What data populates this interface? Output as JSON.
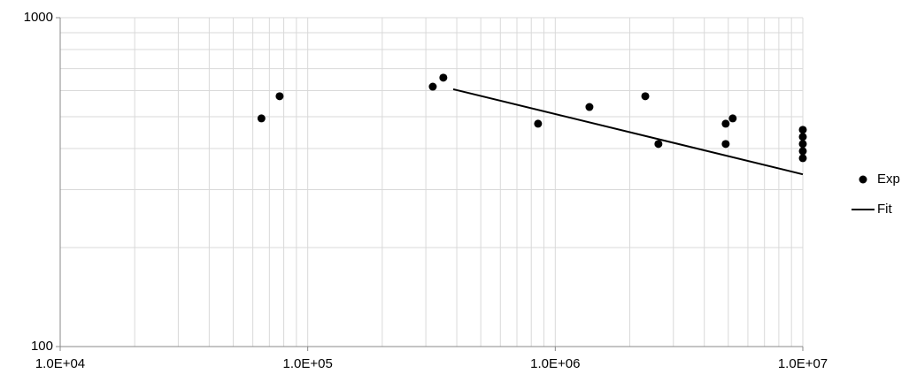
{
  "chart_data": {
    "type": "scatter",
    "xscale": "log",
    "yscale": "log",
    "xlim": [
      10000,
      10000000
    ],
    "ylim": [
      100,
      1000
    ],
    "xticks": [
      {
        "value": 10000,
        "label": "1.0E+04"
      },
      {
        "value": 100000,
        "label": "1.0E+05"
      },
      {
        "value": 1000000,
        "label": "1.0E+06"
      },
      {
        "value": 10000000,
        "label": "1.0E+07"
      }
    ],
    "yticks": [
      100,
      1000
    ],
    "xminorticks": [
      20000,
      30000,
      40000,
      50000,
      60000,
      70000,
      80000,
      90000,
      200000,
      300000,
      400000,
      500000,
      600000,
      700000,
      800000,
      900000,
      2000000,
      3000000,
      4000000,
      5000000,
      6000000,
      7000000,
      8000000,
      9000000
    ],
    "yminorticks": [
      200,
      300,
      400,
      500,
      600,
      700,
      800,
      900
    ],
    "grid": true,
    "legend": "right",
    "series": [
      {
        "name": "Exp",
        "type": "scatter",
        "color": "#000000",
        "x": [
          65000,
          77000,
          320000,
          353000,
          852000,
          1374000,
          2310000,
          2610000,
          4880000,
          4880000,
          5210000,
          10000000,
          10000000,
          10000000,
          10000000,
          10000000
        ],
        "values": [
          494,
          577,
          617,
          657,
          476,
          535,
          577,
          413,
          476,
          413,
          494,
          456,
          434,
          413,
          393,
          374
        ]
      },
      {
        "name": "Fit",
        "type": "line",
        "color": "#000000",
        "x": [
          387000,
          10000000
        ],
        "values": [
          606,
          334
        ]
      }
    ]
  }
}
